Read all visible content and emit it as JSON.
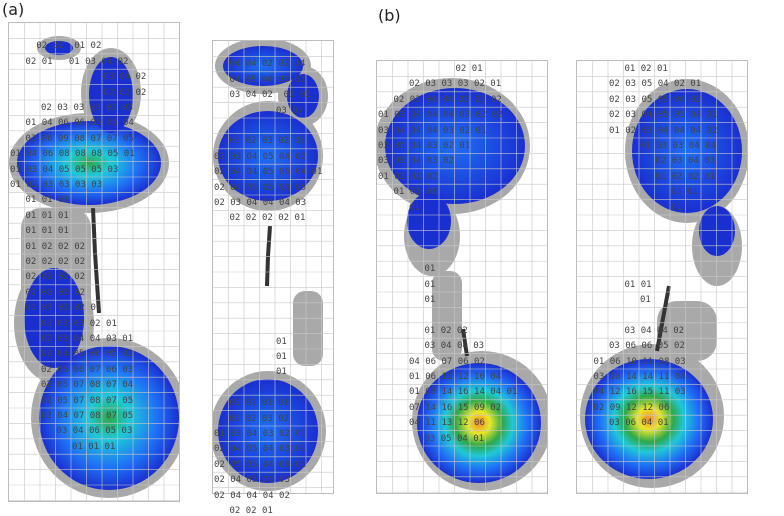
{
  "panel_labels": [
    "(a)",
    "(b)"
  ],
  "colors": {
    "halo": "#a9a9a9",
    "low": "#1a2fd0",
    "mid_blue": "#1f6ff5",
    "cyan": "#1fc8d8",
    "green": "#2fa84a",
    "yellow": "#e8e82a",
    "orange": "#f08a2a",
    "grid": "#c9c9c9"
  },
  "plates": [
    {
      "id": "a1",
      "rows": [
        {
          "r": 1,
          "c": 1,
          "t": "  02 01  01 02"
        },
        {
          "r": 2,
          "c": 1,
          "t": "02 01   01 03 04 02"
        },
        {
          "r": 3,
          "c": 6,
          "t": "03 04 02"
        },
        {
          "r": 4,
          "c": 6,
          "t": "02 02 02"
        },
        {
          "r": 5,
          "c": 2,
          "t": "02 03 03 03 03 03"
        },
        {
          "r": 6,
          "c": 1,
          "t": "01 04 06 06 05 06 04"
        },
        {
          "r": 7,
          "c": 1,
          "t": "03 06 09 08 07 07 05"
        },
        {
          "r": 8,
          "c": 0,
          "t": "01 04 06 08 08 08 05 01"
        },
        {
          "r": 9,
          "c": 0,
          "t": "01 03 04 05 05 05 03"
        },
        {
          "r": 10,
          "c": 0,
          "t": "01 02 03 03 03 03"
        },
        {
          "r": 11,
          "c": 1,
          "t": "01 01 01"
        },
        {
          "r": 12,
          "c": 1,
          "t": "01 01 01"
        },
        {
          "r": 13,
          "c": 1,
          "t": "01 01 01"
        },
        {
          "r": 14,
          "c": 1,
          "t": "01 02 02 02"
        },
        {
          "r": 15,
          "c": 1,
          "t": "02 02 02 02"
        },
        {
          "r": 16,
          "c": 1,
          "t": "02 02 02 02"
        },
        {
          "r": 17,
          "c": 1,
          "t": "02 03 03 02"
        },
        {
          "r": 18,
          "c": 1,
          "t": "01 03 03 02 01"
        },
        {
          "r": 19,
          "c": 2,
          "t": "02 03 03 02 01"
        },
        {
          "r": 20,
          "c": 2,
          "t": "02 03 04 04 03 01"
        },
        {
          "r": 21,
          "c": 2,
          "t": "02 04 05 06 05 02"
        },
        {
          "r": 22,
          "c": 2,
          "t": "02 05 06 07 06 03"
        },
        {
          "r": 23,
          "c": 2,
          "t": "02 05 07 08 07 04"
        },
        {
          "r": 24,
          "c": 2,
          "t": "02 05 07 08 07 05"
        },
        {
          "r": 25,
          "c": 2,
          "t": "02 04 07 08 07 05"
        },
        {
          "r": 26,
          "c": 3,
          "t": "03 04 06 05 03"
        },
        {
          "r": 27,
          "c": 4,
          "t": "01 01 01"
        }
      ]
    },
    {
      "id": "a2",
      "rows": [
        {
          "r": 1,
          "c": 1,
          "t": "04 04 02 02 04"
        },
        {
          "r": 2,
          "c": 1,
          "t": "04 05 04 03 02"
        },
        {
          "r": 3,
          "c": 1,
          "t": "03 04 02  03 02"
        },
        {
          "r": 4,
          "c": 4,
          "t": "03 07"
        },
        {
          "r": 6,
          "c": 1,
          "t": "01 02 03 02 01"
        },
        {
          "r": 7,
          "c": 0,
          "t": "02 03 04 05 04 02"
        },
        {
          "r": 8,
          "c": 0,
          "t": "02 04 04 05 06 04 01"
        },
        {
          "r": 9,
          "c": 0,
          "t": "02 04 05 05 06 05"
        },
        {
          "r": 10,
          "c": 0,
          "t": "02 03 04 04 04 03"
        },
        {
          "r": 11,
          "c": 1,
          "t": "02 02 02 02 01"
        },
        {
          "r": 19,
          "c": 4,
          "t": "01"
        },
        {
          "r": 20,
          "c": 4,
          "t": "01"
        },
        {
          "r": 21,
          "c": 4,
          "t": "01"
        },
        {
          "r": 23,
          "c": 1,
          "t": "01 01 01 01"
        },
        {
          "r": 24,
          "c": 1,
          "t": "01 02 03 02"
        },
        {
          "r": 25,
          "c": 0,
          "t": "01 03 04 03 02 01"
        },
        {
          "r": 26,
          "c": 0,
          "t": "02 04 05 04 03 01"
        },
        {
          "r": 27,
          "c": 0,
          "t": "02 05 05 04 03 01"
        },
        {
          "r": 28,
          "c": 0,
          "t": "02 04 05 04 03"
        },
        {
          "r": 29,
          "c": 0,
          "t": "02 04 04 04 02"
        },
        {
          "r": 30,
          "c": 1,
          "t": "02 02 01"
        }
      ]
    },
    {
      "id": "b1",
      "rows": [
        {
          "r": 0,
          "c": 5,
          "t": "02 01"
        },
        {
          "r": 1,
          "c": 2,
          "t": "02 03 03 03 02 01"
        },
        {
          "r": 2,
          "c": 1,
          "t": "02 03 04 04 03 02 02"
        },
        {
          "r": 3,
          "c": 0,
          "t": "01 03 04 04 04 03 02 02"
        },
        {
          "r": 4,
          "c": 0,
          "t": "03 04 04 04 03 02 01"
        },
        {
          "r": 5,
          "c": 0,
          "t": "03 05 04 03 02 01"
        },
        {
          "r": 6,
          "c": 0,
          "t": "03 05 04 03 02"
        },
        {
          "r": 7,
          "c": 0,
          "t": "01 02 02 02"
        },
        {
          "r": 8,
          "c": 1,
          "t": "01 01 01"
        },
        {
          "r": 9,
          "c": 2,
          "t": "01"
        },
        {
          "r": 13,
          "c": 3,
          "t": "01"
        },
        {
          "r": 14,
          "c": 3,
          "t": "01"
        },
        {
          "r": 15,
          "c": 3,
          "t": "01"
        },
        {
          "r": 17,
          "c": 3,
          "t": "01 02 02"
        },
        {
          "r": 18,
          "c": 3,
          "t": "03 04 04 03"
        },
        {
          "r": 19,
          "c": 2,
          "t": "04 06 07 06 02"
        },
        {
          "r": 20,
          "c": 2,
          "t": "01 06 11 12 10 04"
        },
        {
          "r": 21,
          "c": 2,
          "t": "01 08 14 16 14 04 01"
        },
        {
          "r": 22,
          "c": 2,
          "t": "07 14 16 15 09 02"
        },
        {
          "r": 23,
          "c": 2,
          "t": "04 11 13 12 06"
        },
        {
          "r": 24,
          "c": 3,
          "t": "03 05 04 01"
        }
      ]
    },
    {
      "id": "b2",
      "rows": [
        {
          "r": 0,
          "c": 3,
          "t": "01 02 01"
        },
        {
          "r": 1,
          "c": 2,
          "t": "02 03 05 04 02 01"
        },
        {
          "r": 2,
          "c": 2,
          "t": "02 03 05 05 04 02"
        },
        {
          "r": 3,
          "c": 2,
          "t": "02 03 04 05 05 04 01"
        },
        {
          "r": 4,
          "c": 2,
          "t": "01 02 03 04 04 04 02"
        },
        {
          "r": 5,
          "c": 4,
          "t": "01 03 03 04 04"
        },
        {
          "r": 6,
          "c": 5,
          "t": "02 03 04 03"
        },
        {
          "r": 7,
          "c": 5,
          "t": "01 02 02 01"
        },
        {
          "r": 8,
          "c": 6,
          "t": "01 01"
        },
        {
          "r": 9,
          "c": 6,
          "t": "01"
        },
        {
          "r": 14,
          "c": 3,
          "t": "01 01"
        },
        {
          "r": 15,
          "c": 4,
          "t": "01"
        },
        {
          "r": 17,
          "c": 3,
          "t": "03 04 04 02"
        },
        {
          "r": 18,
          "c": 2,
          "t": "03 06 06 05 02"
        },
        {
          "r": 19,
          "c": 1,
          "t": "01 06 10 11 08 03"
        },
        {
          "r": 20,
          "c": 1,
          "t": "03 10 14 14 11 04"
        },
        {
          "r": 21,
          "c": 1,
          "t": "04 12 16 15 11 03"
        },
        {
          "r": 22,
          "c": 1,
          "t": "02 09 12 12 06"
        },
        {
          "r": 23,
          "c": 2,
          "t": "03 06 04 01"
        }
      ]
    }
  ]
}
